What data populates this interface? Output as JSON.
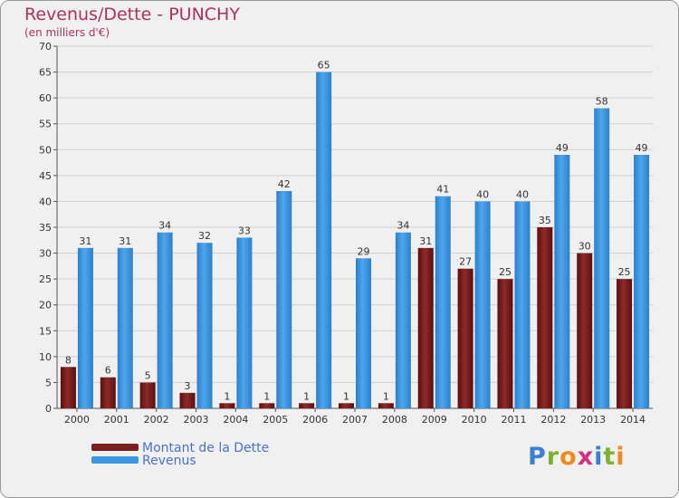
{
  "header": {
    "title": "Revenus/Dette - PUNCHY",
    "subtitle": "(en milliers d'€)"
  },
  "legend": {
    "debt_label": "Montant de la Dette",
    "revenue_label": "Revenus"
  },
  "logo": {
    "text": "Proxiti",
    "letters": [
      "P",
      "r",
      "o",
      "x",
      "i",
      "t",
      "i"
    ],
    "colors": [
      "#3a7fd5",
      "#7bb32e",
      "#f08a1d",
      "#d2317f",
      "#3a7fd5",
      "#7bb32e",
      "#f08a1d"
    ]
  },
  "colors": {
    "debt": "#7a1e1e",
    "revenue": "#3d97e0",
    "title": "#b03060",
    "legend_text": "#4a6fd0"
  },
  "chart_data": {
    "type": "bar",
    "title": "Revenus/Dette - PUNCHY",
    "subtitle": "(en milliers d'€)",
    "categories": [
      "2000",
      "2001",
      "2002",
      "2003",
      "2004",
      "2005",
      "2006",
      "2007",
      "2008",
      "2009",
      "2010",
      "2011",
      "2012",
      "2013",
      "2014"
    ],
    "series": [
      {
        "name": "Montant de la Dette",
        "values": [
          8,
          6,
          5,
          3,
          1,
          1,
          1,
          1,
          1,
          31,
          27,
          25,
          35,
          30,
          25
        ]
      },
      {
        "name": "Revenus",
        "values": [
          31,
          31,
          34,
          32,
          33,
          42,
          65,
          29,
          34,
          41,
          40,
          40,
          49,
          58,
          49
        ]
      }
    ],
    "ylim": [
      0,
      70
    ],
    "yticks": [
      0,
      5,
      10,
      15,
      20,
      25,
      30,
      35,
      40,
      45,
      50,
      55,
      60,
      65,
      70
    ],
    "grid": true,
    "legend_position": "bottom-left"
  }
}
